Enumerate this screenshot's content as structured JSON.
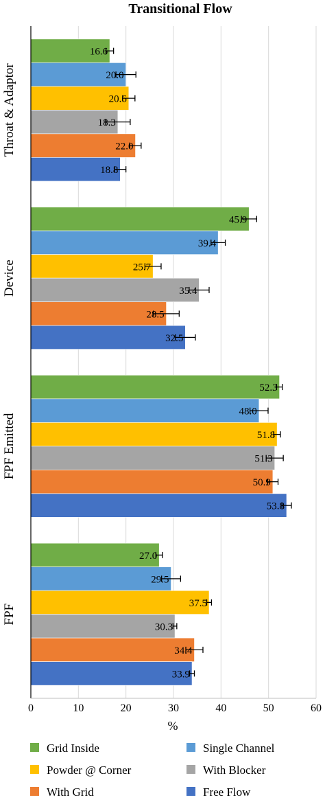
{
  "chart_data": {
    "type": "bar",
    "orientation": "horizontal",
    "title": "Transitional Flow",
    "xlabel": "%",
    "ylabel": "",
    "xlim": [
      0,
      60
    ],
    "xticks": [
      0,
      10,
      20,
      30,
      40,
      50,
      60
    ],
    "grid": "vertical",
    "legend_position": "bottom",
    "categories": [
      "Throat & Adaptor",
      "Device",
      "FPF Emitted",
      "FPF"
    ],
    "series": [
      {
        "name": "Grid Inside",
        "color": "#70ad47",
        "values": [
          16.6,
          45.9,
          52.3,
          27.0
        ],
        "labels": [
          "16.6",
          "45.9",
          "52.3",
          "27.0"
        ],
        "errors": [
          0.8,
          1.6,
          0.6,
          0.7
        ]
      },
      {
        "name": "Single Channel",
        "color": "#5b9bd5",
        "values": [
          20.0,
          39.4,
          48.0,
          29.5
        ],
        "labels": [
          "20.0",
          "39.4",
          "48.0",
          "29.5"
        ],
        "errors": [
          2.1,
          1.5,
          1.9,
          2.0
        ]
      },
      {
        "name": "Powder @ Corner",
        "color": "#ffc000",
        "values": [
          20.6,
          25.7,
          51.8,
          37.5
        ],
        "labels": [
          "20.6",
          "25.7",
          "51.8",
          "37.5"
        ],
        "errors": [
          1.3,
          1.7,
          0.7,
          0.5
        ]
      },
      {
        "name": "With Blocker",
        "color": "#a5a5a5",
        "values": [
          18.3,
          35.4,
          51.3,
          30.3
        ],
        "labels": [
          "18.3",
          "35.4",
          "51.3",
          "30.3"
        ],
        "errors": [
          2.6,
          2.1,
          1.8,
          0.4
        ]
      },
      {
        "name": "With Grid",
        "color": "#ed7d31",
        "values": [
          22.0,
          28.5,
          50.9,
          34.4
        ],
        "labels": [
          "22.0",
          "28.5",
          "50.9",
          "34.4"
        ],
        "errors": [
          1.2,
          2.7,
          1.1,
          1.8
        ]
      },
      {
        "name": "Free Flow",
        "color": "#4472c4",
        "values": [
          18.8,
          32.5,
          53.8,
          33.9
        ],
        "labels": [
          "18.8",
          "32.5",
          "53.8",
          "33.9"
        ],
        "errors": [
          1.2,
          2.1,
          1.0,
          0.5
        ]
      }
    ]
  }
}
